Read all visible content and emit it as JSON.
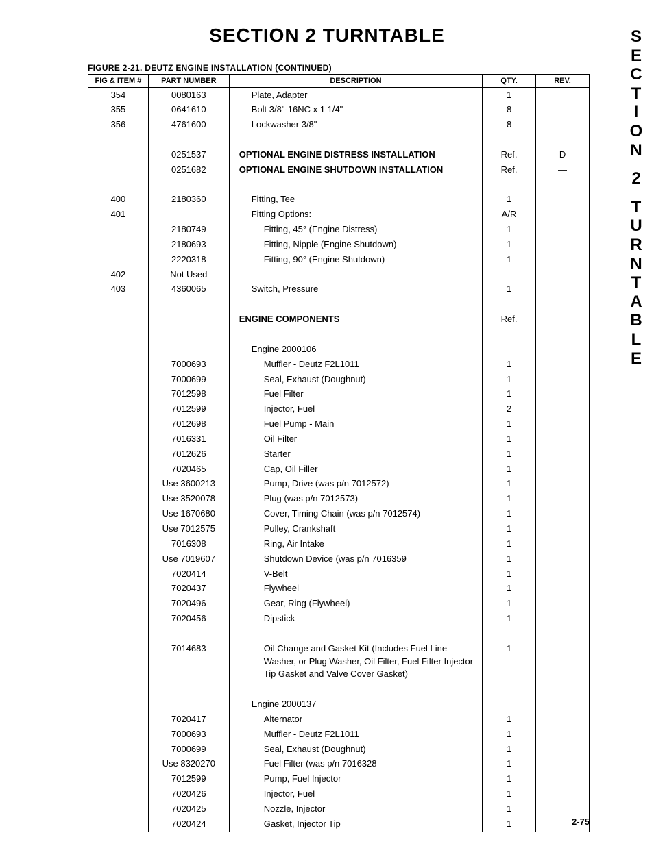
{
  "page": {
    "title": "SECTION 2   TURNTABLE",
    "side_tab": "SECTION 2 TURNTABLE",
    "figure_caption": "FIGURE 2-21.  DEUTZ ENGINE INSTALLATION (CONTINUED)",
    "page_number": "2-75"
  },
  "columns": {
    "fig": "FIG & ITEM #",
    "part": "PART NUMBER",
    "desc": "DESCRIPTION",
    "qty": "QTY.",
    "rev": "REV."
  },
  "rows": [
    {
      "fig": "354",
      "part": "0080163",
      "desc": "Plate, Adapter",
      "qty": "1",
      "rev": "",
      "indent": 1,
      "bold": false
    },
    {
      "fig": "355",
      "part": "0641610",
      "desc": "Bolt 3/8\"-16NC x 1 1/4\"",
      "qty": "8",
      "rev": "",
      "indent": 1,
      "bold": false
    },
    {
      "fig": "356",
      "part": "4761600",
      "desc": "Lockwasher 3/8\"",
      "qty": "8",
      "rev": "",
      "indent": 1,
      "bold": false
    },
    {
      "spacer": true
    },
    {
      "fig": "",
      "part": "0251537",
      "desc": "OPTIONAL ENGINE DISTRESS INSTALLATION",
      "qty": "Ref.",
      "rev": "D",
      "indent": 0,
      "bold": true
    },
    {
      "fig": "",
      "part": "0251682",
      "desc": "OPTIONAL ENGINE SHUTDOWN INSTALLATION",
      "qty": "Ref.",
      "rev": "—",
      "indent": 0,
      "bold": true
    },
    {
      "spacer": true
    },
    {
      "fig": "400",
      "part": "2180360",
      "desc": "Fitting, Tee",
      "qty": "1",
      "rev": "",
      "indent": 1,
      "bold": false
    },
    {
      "fig": "401",
      "part": "",
      "desc": "Fitting Options:",
      "qty": "A/R",
      "rev": "",
      "indent": 1,
      "bold": false
    },
    {
      "fig": "",
      "part": "2180749",
      "desc": "Fitting, 45° (Engine Distress)",
      "qty": "1",
      "rev": "",
      "indent": 2,
      "bold": false
    },
    {
      "fig": "",
      "part": "2180693",
      "desc": "Fitting, Nipple (Engine Shutdown)",
      "qty": "1",
      "rev": "",
      "indent": 2,
      "bold": false
    },
    {
      "fig": "",
      "part": "2220318",
      "desc": "Fitting, 90° (Engine Shutdown)",
      "qty": "1",
      "rev": "",
      "indent": 2,
      "bold": false
    },
    {
      "fig": "402",
      "part": "Not Used",
      "desc": "",
      "qty": "",
      "rev": "",
      "indent": 0,
      "bold": false
    },
    {
      "fig": "403",
      "part": "4360065",
      "desc": "Switch, Pressure",
      "qty": "1",
      "rev": "",
      "indent": 1,
      "bold": false
    },
    {
      "spacer": true
    },
    {
      "fig": "",
      "part": "",
      "desc": "ENGINE COMPONENTS",
      "qty": "Ref.",
      "rev": "",
      "indent": 0,
      "bold": true
    },
    {
      "spacer": true
    },
    {
      "fig": "",
      "part": "",
      "desc": "Engine 2000106",
      "qty": "",
      "rev": "",
      "indent": 1,
      "bold": false
    },
    {
      "fig": "",
      "part": "7000693",
      "desc": "Muffler - Deutz F2L1011",
      "qty": "1",
      "rev": "",
      "indent": 2,
      "bold": false
    },
    {
      "fig": "",
      "part": "7000699",
      "desc": "Seal, Exhaust (Doughnut)",
      "qty": "1",
      "rev": "",
      "indent": 2,
      "bold": false
    },
    {
      "fig": "",
      "part": "7012598",
      "desc": "Fuel Filter",
      "qty": "1",
      "rev": "",
      "indent": 2,
      "bold": false
    },
    {
      "fig": "",
      "part": "7012599",
      "desc": "Injector, Fuel",
      "qty": "2",
      "rev": "",
      "indent": 2,
      "bold": false
    },
    {
      "fig": "",
      "part": "7012698",
      "desc": "Fuel Pump - Main",
      "qty": "1",
      "rev": "",
      "indent": 2,
      "bold": false
    },
    {
      "fig": "",
      "part": "7016331",
      "desc": "Oil Filter",
      "qty": "1",
      "rev": "",
      "indent": 2,
      "bold": false
    },
    {
      "fig": "",
      "part": "7012626",
      "desc": "Starter",
      "qty": "1",
      "rev": "",
      "indent": 2,
      "bold": false
    },
    {
      "fig": "",
      "part": "7020465",
      "desc": "Cap, Oil Filler",
      "qty": "1",
      "rev": "",
      "indent": 2,
      "bold": false
    },
    {
      "fig": "",
      "part": "Use 3600213",
      "desc": "Pump, Drive (was p/n 7012572)",
      "qty": "1",
      "rev": "",
      "indent": 2,
      "bold": false
    },
    {
      "fig": "",
      "part": "Use 3520078",
      "desc": "Plug (was p/n 7012573)",
      "qty": "1",
      "rev": "",
      "indent": 2,
      "bold": false
    },
    {
      "fig": "",
      "part": "Use 1670680",
      "desc": "Cover, Timing Chain (was p/n 7012574)",
      "qty": "1",
      "rev": "",
      "indent": 2,
      "bold": false
    },
    {
      "fig": "",
      "part": "Use 7012575",
      "desc": "Pulley, Crankshaft",
      "qty": "1",
      "rev": "",
      "indent": 2,
      "bold": false
    },
    {
      "fig": "",
      "part": "7016308",
      "desc": "Ring, Air Intake",
      "qty": "1",
      "rev": "",
      "indent": 2,
      "bold": false
    },
    {
      "fig": "",
      "part": "Use 7019607",
      "desc": "Shutdown Device (was p/n 7016359",
      "qty": "1",
      "rev": "",
      "indent": 2,
      "bold": false
    },
    {
      "fig": "",
      "part": "7020414",
      "desc": "V-Belt",
      "qty": "1",
      "rev": "",
      "indent": 2,
      "bold": false
    },
    {
      "fig": "",
      "part": "7020437",
      "desc": "Flywheel",
      "qty": "1",
      "rev": "",
      "indent": 2,
      "bold": false
    },
    {
      "fig": "",
      "part": "7020496",
      "desc": "Gear, Ring (Flywheel)",
      "qty": "1",
      "rev": "",
      "indent": 2,
      "bold": false
    },
    {
      "fig": "",
      "part": "7020456",
      "desc": "Dipstick",
      "qty": "1",
      "rev": "",
      "indent": 2,
      "bold": false
    },
    {
      "fig": "",
      "part": "",
      "desc": "— — — — — — — — —",
      "qty": "",
      "rev": "",
      "indent": 2,
      "bold": false,
      "dashes": true
    },
    {
      "fig": "",
      "part": "7014683",
      "desc": "Oil Change and Gasket Kit (Includes Fuel Line Washer, or Plug Washer, Oil Filter, Fuel Filter Injector Tip Gasket and Valve Cover Gasket)",
      "qty": "1",
      "rev": "",
      "indent": 2,
      "bold": false
    },
    {
      "spacer": true
    },
    {
      "fig": "",
      "part": "",
      "desc": "Engine 2000137",
      "qty": "",
      "rev": "",
      "indent": 1,
      "bold": false
    },
    {
      "fig": "",
      "part": "7020417",
      "desc": "Alternator",
      "qty": "1",
      "rev": "",
      "indent": 2,
      "bold": false
    },
    {
      "fig": "",
      "part": "7000693",
      "desc": "Muffler - Deutz F2L1011",
      "qty": "1",
      "rev": "",
      "indent": 2,
      "bold": false
    },
    {
      "fig": "",
      "part": "7000699",
      "desc": "Seal, Exhaust (Doughnut)",
      "qty": "1",
      "rev": "",
      "indent": 2,
      "bold": false
    },
    {
      "fig": "",
      "part": "Use 8320270",
      "desc": "Fuel Filter (was p/n 7016328",
      "qty": "1",
      "rev": "",
      "indent": 2,
      "bold": false
    },
    {
      "fig": "",
      "part": "7012599",
      "desc": "Pump, Fuel Injector",
      "qty": "1",
      "rev": "",
      "indent": 2,
      "bold": false
    },
    {
      "fig": "",
      "part": "7020426",
      "desc": "Injector, Fuel",
      "qty": "1",
      "rev": "",
      "indent": 2,
      "bold": false
    },
    {
      "fig": "",
      "part": "7020425",
      "desc": "Nozzle, Injector",
      "qty": "1",
      "rev": "",
      "indent": 2,
      "bold": false
    },
    {
      "fig": "",
      "part": "7020424",
      "desc": "Gasket, Injector Tip",
      "qty": "1",
      "rev": "",
      "indent": 2,
      "bold": false
    }
  ]
}
